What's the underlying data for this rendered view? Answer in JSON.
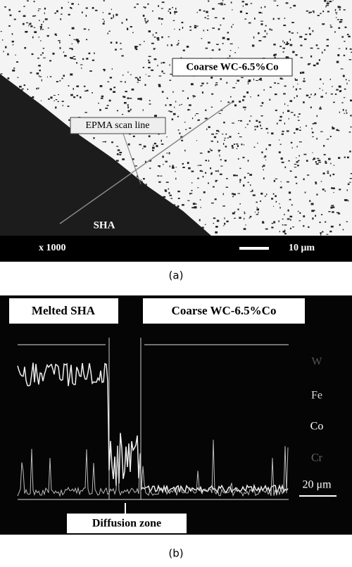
{
  "panel_a": {
    "label_region": "Coarse WC-6.5%Co",
    "label_scan": "EPMA scan line",
    "label_sha": "SHA",
    "magnification": "x 1000",
    "scale": "10 μm",
    "caption": "(a)"
  },
  "panel_b": {
    "label_left": "Melted SHA",
    "label_right": "Coarse WC-6.5%Co",
    "elements": [
      "W",
      "Fe",
      "Co",
      "Cr"
    ],
    "scale": "20 μm",
    "zone": "Diffusion zone",
    "caption": "(b)"
  }
}
